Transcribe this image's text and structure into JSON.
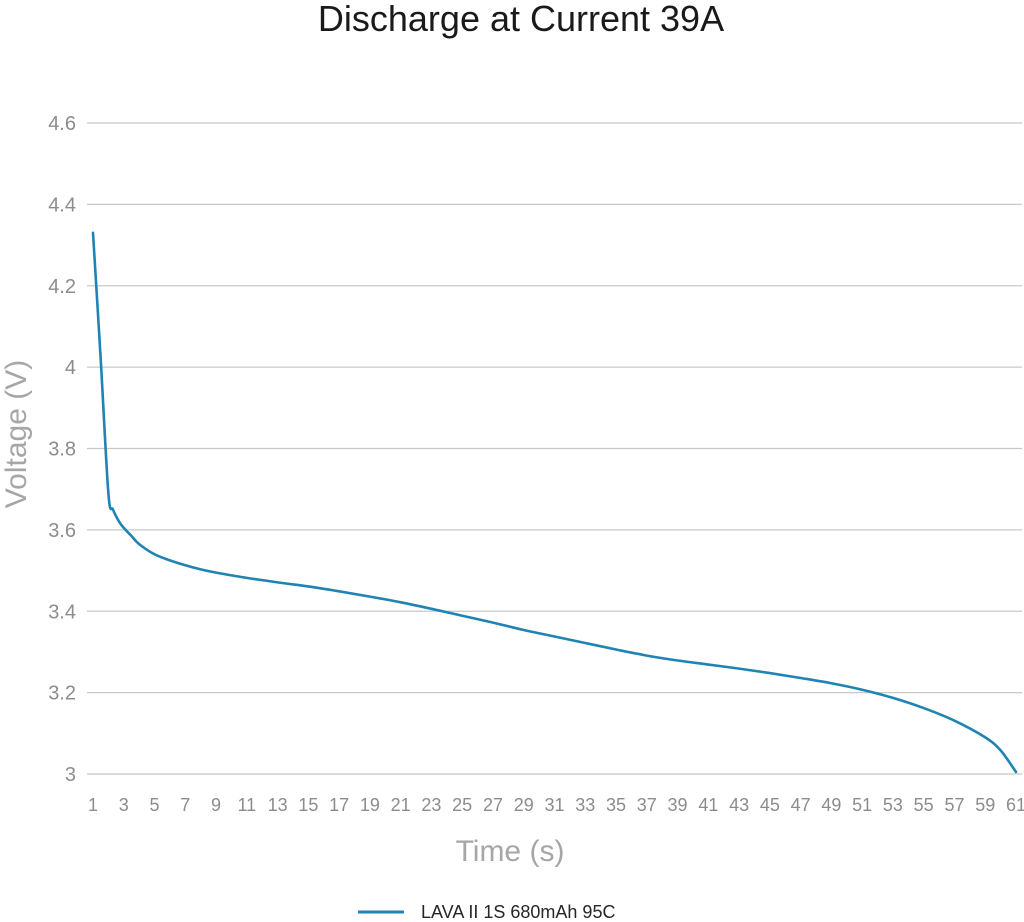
{
  "chart_data": {
    "type": "line",
    "title": "Discharge at Current 39A",
    "xlabel": "Time (s)",
    "ylabel": "Voltage (V)",
    "ylim": [
      3,
      4.6
    ],
    "yticks": [
      "3",
      "3.2",
      "3.4",
      "3.6",
      "3.8",
      "4",
      "4.2",
      "4.4",
      "4.6"
    ],
    "xlim": [
      1,
      61
    ],
    "xticks": [
      "1",
      "3",
      "5",
      "7",
      "9",
      "11",
      "13",
      "15",
      "17",
      "19",
      "21",
      "23",
      "25",
      "27",
      "29",
      "31",
      "33",
      "35",
      "37",
      "39",
      "41",
      "43",
      "45",
      "47",
      "49",
      "51",
      "53",
      "55",
      "57",
      "59",
      "61"
    ],
    "grid": true,
    "legend_position": "bottom",
    "line_color": "#1f83b4",
    "series": [
      {
        "name": "LAVA II 1S 680mAh 95C",
        "x": [
          1,
          1.5,
          2,
          2.3,
          2.7,
          3,
          3.5,
          4,
          5,
          6,
          7,
          8,
          9,
          11,
          13,
          15,
          17,
          19,
          21,
          23,
          25,
          27,
          29,
          31,
          33,
          35,
          37,
          39,
          41,
          43,
          45,
          47,
          49,
          51,
          53,
          55,
          57,
          59,
          60,
          61
        ],
        "values": [
          4.33,
          4.02,
          3.69,
          3.65,
          3.62,
          3.605,
          3.585,
          3.565,
          3.54,
          3.525,
          3.513,
          3.503,
          3.495,
          3.482,
          3.471,
          3.461,
          3.449,
          3.436,
          3.422,
          3.406,
          3.389,
          3.372,
          3.354,
          3.338,
          3.322,
          3.306,
          3.291,
          3.279,
          3.269,
          3.259,
          3.248,
          3.236,
          3.223,
          3.207,
          3.187,
          3.162,
          3.131,
          3.09,
          3.058,
          3.005
        ]
      }
    ]
  }
}
